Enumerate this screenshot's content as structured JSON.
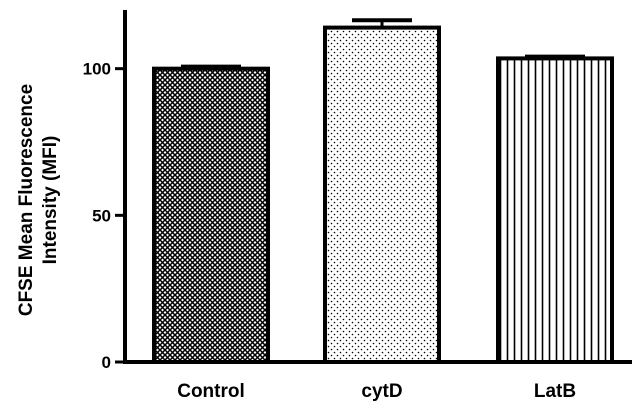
{
  "chart_data": {
    "type": "bar",
    "categories": [
      "Control",
      "cytD",
      "LatB"
    ],
    "values": [
      100,
      114,
      103.5
    ],
    "errors": [
      0.7,
      2.5,
      0.6
    ],
    "fill_patterns": [
      "crosshatch",
      "dots",
      "vertical-lines"
    ],
    "title": "",
    "xlabel": "",
    "ylabel_lines": [
      "CFSE Mean Fluorescence",
      "Intensity (MFI)"
    ],
    "ylim": [
      0,
      120
    ],
    "yticks": [
      0,
      50,
      100
    ],
    "grid": false,
    "legend": "none"
  },
  "colors": {
    "axis": "#000000",
    "bar_stroke": "#000000",
    "bar_fill_base": "#ffffff",
    "pattern_ink": "#000000"
  }
}
